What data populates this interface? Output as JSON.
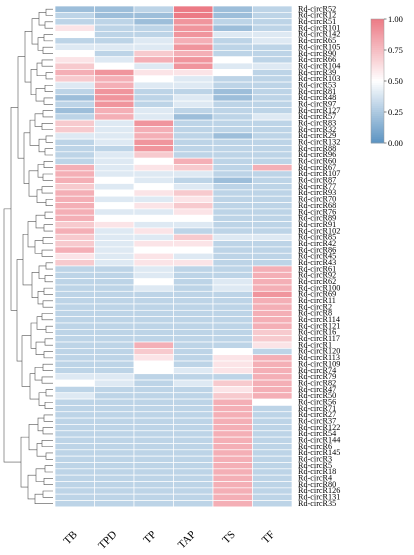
{
  "chart_data": {
    "type": "heatmap",
    "title": "",
    "xlabel": "",
    "ylabel": "",
    "columns": [
      "TB",
      "TPD",
      "TP",
      "TAP",
      "TS",
      "TF"
    ],
    "rows": [
      "Rd-circR52",
      "Rd-circR12",
      "Rd-circR51",
      "Rd-circR101",
      "Rd-circR142",
      "Rd-circR65",
      "Rd-circR105",
      "Rd-circR90",
      "Rd-circR66",
      "Rd-circR104",
      "Rd-circR39",
      "Rd-circR103",
      "Rd-circR53",
      "Rd-circR81",
      "Rd-circR48",
      "Rd-circR97",
      "Rd-circR127",
      "Rd-circR57",
      "Rd-circR83",
      "Rd-circR32",
      "Rd-circR29",
      "Rd-circR132",
      "Rd-circR88",
      "Rd-circR96",
      "Rd-circR60",
      "Rd-circR67",
      "Rd-circR107",
      "Rd-circR87",
      "Rd-circR77",
      "Rd-circR93",
      "Rd-circR70",
      "Rd-circR68",
      "Rd-circR76",
      "Rd-circR89",
      "Rd-circR91",
      "Rd-circR102",
      "Rd-circR85",
      "Rd-circR42",
      "Rd-circR86",
      "Rd-circR45",
      "Rd-circR43",
      "Rd-circR61",
      "Rd-circR92",
      "Rd-circR62",
      "Rd-circR100",
      "Rd-circR69",
      "Rd-circR11",
      "Rd-circR2",
      "Rd-circR8",
      "Rd-circR114",
      "Rd-circR121",
      "Rd-circR16",
      "Rd-circR117",
      "Rd-circR1",
      "Rd-circR120",
      "Rd-circR113",
      "Rd-circR109",
      "Rd-circR74",
      "Rd-circR79",
      "Rd-circR82",
      "Rd-circR47",
      "Rd-circR50",
      "Rd-circR56",
      "Rd-circR71",
      "Rd-circR27",
      "Rd-circR37",
      "Rd-circR122",
      "Rd-circR54",
      "Rd-circR144",
      "Rd-circR6",
      "Rd-circR145",
      "Rd-circR3",
      "Rd-circR5",
      "Rd-circR18",
      "Rd-circR4",
      "Rd-circR80",
      "Rd-circR126",
      "Rd-circR131",
      "Rd-circR35"
    ],
    "values": [
      [
        0.2,
        0.2,
        0.3,
        1.0,
        0.2,
        0.3
      ],
      [
        0.3,
        0.2,
        0.2,
        1.0,
        0.2,
        0.3
      ],
      [
        0.3,
        0.3,
        0.2,
        0.9,
        0.3,
        0.3
      ],
      [
        0.6,
        0.3,
        0.3,
        0.9,
        0.2,
        0.3
      ],
      [
        0.5,
        0.3,
        0.3,
        0.9,
        0.4,
        0.4
      ],
      [
        0.3,
        0.3,
        0.4,
        0.8,
        0.3,
        0.4
      ],
      [
        0.4,
        0.4,
        0.4,
        0.9,
        0.3,
        0.3
      ],
      [
        0.5,
        0.3,
        0.7,
        0.8,
        0.3,
        0.3
      ],
      [
        0.6,
        0.4,
        0.8,
        0.9,
        0.5,
        0.3
      ],
      [
        0.7,
        0.5,
        0.4,
        0.9,
        0.4,
        0.4
      ],
      [
        0.8,
        0.9,
        0.6,
        0.6,
        0.5,
        0.3
      ],
      [
        0.7,
        0.8,
        0.5,
        0.4,
        0.3,
        0.3
      ],
      [
        0.4,
        0.8,
        0.4,
        0.4,
        0.3,
        0.3
      ],
      [
        0.3,
        0.9,
        0.3,
        0.3,
        0.2,
        0.3
      ],
      [
        0.2,
        0.9,
        0.3,
        0.4,
        0.2,
        0.3
      ],
      [
        0.3,
        0.9,
        0.3,
        0.4,
        0.3,
        0.3
      ],
      [
        0.2,
        0.8,
        0.4,
        0.3,
        0.3,
        0.3
      ],
      [
        0.3,
        0.8,
        0.4,
        0.2,
        0.3,
        0.4
      ],
      [
        0.7,
        0.4,
        0.9,
        0.3,
        0.3,
        0.3
      ],
      [
        0.7,
        0.4,
        0.8,
        0.3,
        0.3,
        0.3
      ],
      [
        0.4,
        0.4,
        0.8,
        0.3,
        0.2,
        0.3
      ],
      [
        0.3,
        0.4,
        0.9,
        0.3,
        0.3,
        0.3
      ],
      [
        0.3,
        0.3,
        0.9,
        0.3,
        0.3,
        0.3
      ],
      [
        0.3,
        0.4,
        0.7,
        0.3,
        0.3,
        0.3
      ],
      [
        0.3,
        0.4,
        0.5,
        0.8,
        0.3,
        0.3
      ],
      [
        0.8,
        0.4,
        0.6,
        0.7,
        0.3,
        0.8
      ],
      [
        0.8,
        0.4,
        0.4,
        0.4,
        0.3,
        0.3
      ],
      [
        0.8,
        0.5,
        0.4,
        0.3,
        0.2,
        0.3
      ],
      [
        0.7,
        0.4,
        0.5,
        0.4,
        0.3,
        0.3
      ],
      [
        0.8,
        0.5,
        0.6,
        0.7,
        0.3,
        0.3
      ],
      [
        0.8,
        0.4,
        0.4,
        0.6,
        0.3,
        0.3
      ],
      [
        0.8,
        0.5,
        0.6,
        0.7,
        0.3,
        0.3
      ],
      [
        0.8,
        0.4,
        0.4,
        0.6,
        0.3,
        0.3
      ],
      [
        0.8,
        0.5,
        0.5,
        0.5,
        0.3,
        0.3
      ],
      [
        0.7,
        0.6,
        0.4,
        0.4,
        0.3,
        0.3
      ],
      [
        0.8,
        0.4,
        0.6,
        0.3,
        0.3,
        0.3
      ],
      [
        0.7,
        0.4,
        0.4,
        0.7,
        0.4,
        0.4
      ],
      [
        0.7,
        0.4,
        0.6,
        0.6,
        0.3,
        0.3
      ],
      [
        0.8,
        0.4,
        0.5,
        0.5,
        0.3,
        0.3
      ],
      [
        0.6,
        0.4,
        0.6,
        0.4,
        0.3,
        0.3
      ],
      [
        0.7,
        0.4,
        0.6,
        0.6,
        0.3,
        0.3
      ],
      [
        0.3,
        0.3,
        0.4,
        0.3,
        0.3,
        0.8
      ],
      [
        0.3,
        0.3,
        0.4,
        0.3,
        0.3,
        0.8
      ],
      [
        0.3,
        0.3,
        0.5,
        0.3,
        0.4,
        0.8
      ],
      [
        0.3,
        0.3,
        0.4,
        0.3,
        0.4,
        0.8
      ],
      [
        0.3,
        0.3,
        0.3,
        0.3,
        0.3,
        0.9
      ],
      [
        0.3,
        0.3,
        0.3,
        0.3,
        0.3,
        0.8
      ],
      [
        0.3,
        0.3,
        0.3,
        0.3,
        0.3,
        0.8
      ],
      [
        0.3,
        0.3,
        0.3,
        0.3,
        0.3,
        0.8
      ],
      [
        0.3,
        0.3,
        0.3,
        0.3,
        0.3,
        0.8
      ],
      [
        0.3,
        0.3,
        0.3,
        0.3,
        0.3,
        0.8
      ],
      [
        0.3,
        0.3,
        0.3,
        0.3,
        0.3,
        0.7
      ],
      [
        0.3,
        0.3,
        0.3,
        0.3,
        0.3,
        0.7
      ],
      [
        0.3,
        0.3,
        0.8,
        0.3,
        0.3,
        0.6
      ],
      [
        0.3,
        0.3,
        0.7,
        0.3,
        0.5,
        0.3
      ],
      [
        0.3,
        0.3,
        0.6,
        0.3,
        0.6,
        0.8
      ],
      [
        0.3,
        0.3,
        0.5,
        0.3,
        0.6,
        0.8
      ],
      [
        0.3,
        0.3,
        0.5,
        0.4,
        0.6,
        0.8
      ],
      [
        0.4,
        0.4,
        0.3,
        0.3,
        0.3,
        0.8
      ],
      [
        0.5,
        0.4,
        0.3,
        0.4,
        0.7,
        0.8
      ],
      [
        0.3,
        0.3,
        0.3,
        0.3,
        0.6,
        0.8
      ],
      [
        0.4,
        0.3,
        0.3,
        0.3,
        0.7,
        0.8
      ],
      [
        0.3,
        0.3,
        0.3,
        0.3,
        0.8,
        0.5
      ],
      [
        0.3,
        0.3,
        0.3,
        0.3,
        0.8,
        0.3
      ],
      [
        0.3,
        0.3,
        0.3,
        0.3,
        0.8,
        0.3
      ],
      [
        0.3,
        0.3,
        0.3,
        0.3,
        0.8,
        0.3
      ],
      [
        0.3,
        0.3,
        0.3,
        0.3,
        0.8,
        0.3
      ],
      [
        0.3,
        0.3,
        0.3,
        0.3,
        0.8,
        0.3
      ],
      [
        0.3,
        0.3,
        0.3,
        0.3,
        0.8,
        0.3
      ],
      [
        0.3,
        0.3,
        0.3,
        0.3,
        0.8,
        0.3
      ],
      [
        0.3,
        0.3,
        0.3,
        0.3,
        0.8,
        0.3
      ],
      [
        0.3,
        0.3,
        0.3,
        0.3,
        0.8,
        0.3
      ],
      [
        0.3,
        0.3,
        0.3,
        0.3,
        0.8,
        0.3
      ],
      [
        0.3,
        0.3,
        0.3,
        0.3,
        0.8,
        0.3
      ],
      [
        0.3,
        0.3,
        0.3,
        0.3,
        0.8,
        0.3
      ],
      [
        0.3,
        0.3,
        0.3,
        0.3,
        0.8,
        0.3
      ],
      [
        0.3,
        0.3,
        0.3,
        0.3,
        0.8,
        0.3
      ],
      [
        0.3,
        0.3,
        0.3,
        0.3,
        0.8,
        0.3
      ],
      [
        0.3,
        0.3,
        0.3,
        0.3,
        0.8,
        0.3
      ]
    ],
    "colorbar": {
      "min": 0.0,
      "max": 1.0,
      "ticks": [
        "0.00",
        "0.25",
        "0.50",
        "0.75",
        "1.00"
      ],
      "low_color": "#5b93c2",
      "mid_color": "#ffffff",
      "high_color": "#ec7a85"
    },
    "dendrogram": "left",
    "grid": false,
    "legend": "colorbar top-right"
  }
}
